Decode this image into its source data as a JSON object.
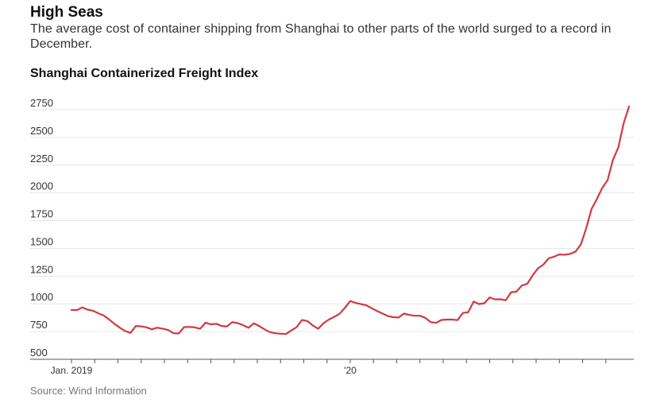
{
  "headline": "High Seas",
  "dek": "The average cost of container shipping from Shanghai to other parts of the world surged to a record in December.",
  "source": "Source: Wind Information",
  "colors": {
    "line": "#d03a41",
    "grid": "#e6e6e6",
    "axis": "#555555"
  },
  "chart_data": {
    "type": "line",
    "title": "Shanghai Containerized Freight Index",
    "xlabel": "",
    "ylabel": "",
    "ylim": [
      500,
      2750
    ],
    "yticks": [
      500,
      750,
      1000,
      1250,
      1500,
      1750,
      2000,
      2250,
      2500,
      2750
    ],
    "ytick_labels": [
      "500",
      "750",
      "1000",
      "1250",
      "1500",
      "1750",
      "2000",
      "2250",
      "2500",
      "2750"
    ],
    "grid": true,
    "x_start": "2019-01",
    "x_end": "2020-12",
    "xtick_labels": [
      {
        "date": "2019-01",
        "label": "Jan. 2019"
      },
      {
        "date": "2020-01",
        "label": "'20"
      }
    ],
    "series": [
      {
        "values": [
          945,
          943,
          968,
          948,
          938,
          915,
          895,
          860,
          820,
          785,
          755,
          738,
          800,
          797,
          788,
          770,
          785,
          775,
          765,
          735,
          733,
          790,
          792,
          787,
          775,
          830,
          815,
          820,
          800,
          797,
          835,
          826,
          808,
          784,
          824,
          800,
          770,
          745,
          735,
          731,
          728,
          760,
          790,
          855,
          845,
          805,
          775,
          825,
          858,
          883,
          910,
          965,
          1025,
          1008,
          997,
          987,
          960,
          935,
          913,
          890,
          880,
          877,
          912,
          900,
          893,
          893,
          873,
          835,
          828,
          855,
          858,
          858,
          853,
          918,
          925,
          1020,
          998,
          1005,
          1058,
          1040,
          1042,
          1032,
          1105,
          1110,
          1165,
          1180,
          1255,
          1320,
          1353,
          1410,
          1425,
          1445,
          1442,
          1450,
          1470,
          1535,
          1680,
          1855,
          1945,
          2045,
          2115,
          2300,
          2410,
          2630,
          2780
        ]
      }
    ]
  }
}
